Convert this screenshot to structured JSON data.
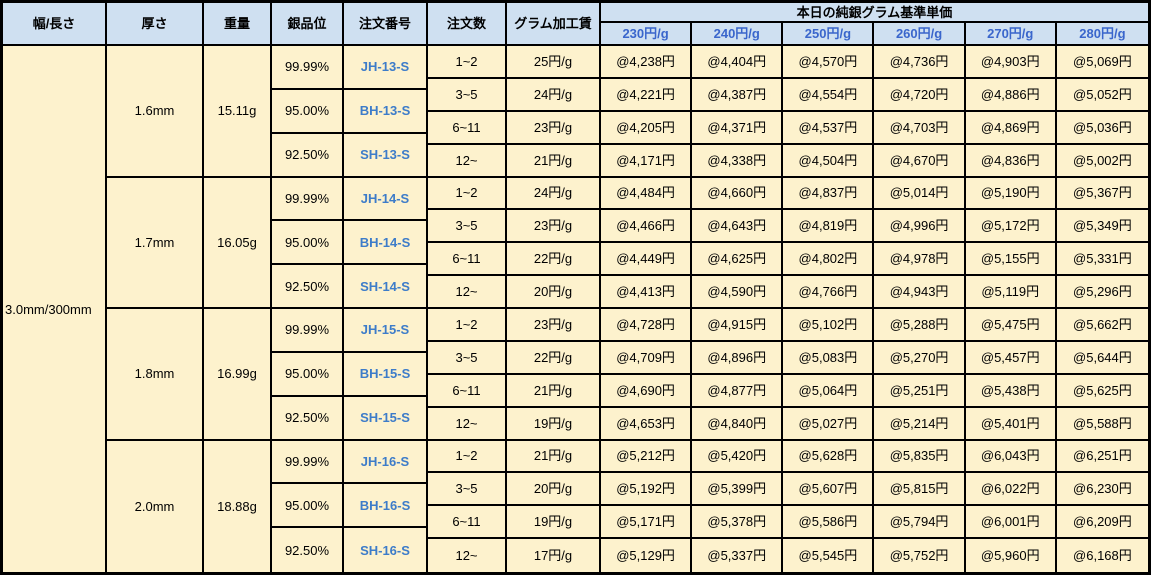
{
  "columns": {
    "width_length": "幅/長さ",
    "thickness": "厚さ",
    "weight": "重量",
    "purity": "銀品位",
    "order_number": "注文番号",
    "order_qty": "注文数",
    "gram_fee": "グラム加工賃"
  },
  "price_header": {
    "title": "本日の純銀グラム基準単価",
    "tiers": [
      "230円/g",
      "240円/g",
      "250円/g",
      "260円/g",
      "270円/g",
      "280円/g"
    ]
  },
  "size_label": "3.0mm/300mm",
  "colors": {
    "header_bg": "#cfe0f1",
    "cell_bg": "#fdf2cd",
    "tier_text": "#3a66cc",
    "order_number_text": "#3d7cc9",
    "border": "#000000"
  },
  "blocks": [
    {
      "thickness": "1.6mm",
      "weight": "15.11g",
      "purities": [
        {
          "purity": "99.99%",
          "order_no": "JH-13-S"
        },
        {
          "purity": "95.00%",
          "order_no": "BH-13-S"
        },
        {
          "purity": "92.50%",
          "order_no": "SH-13-S"
        }
      ],
      "rows": [
        {
          "qty": "1~2",
          "fee": "25円/g",
          "prices": [
            "@4,238円",
            "@4,404円",
            "@4,570円",
            "@4,736円",
            "@4,903円",
            "@5,069円"
          ]
        },
        {
          "qty": "3~5",
          "fee": "24円/g",
          "prices": [
            "@4,221円",
            "@4,387円",
            "@4,554円",
            "@4,720円",
            "@4,886円",
            "@5,052円"
          ]
        },
        {
          "qty": "6~11",
          "fee": "23円/g",
          "prices": [
            "@4,205円",
            "@4,371円",
            "@4,537円",
            "@4,703円",
            "@4,869円",
            "@5,036円"
          ]
        },
        {
          "qty": "12~",
          "fee": "21円/g",
          "prices": [
            "@4,171円",
            "@4,338円",
            "@4,504円",
            "@4,670円",
            "@4,836円",
            "@5,002円"
          ]
        }
      ]
    },
    {
      "thickness": "1.7mm",
      "weight": "16.05g",
      "purities": [
        {
          "purity": "99.99%",
          "order_no": "JH-14-S"
        },
        {
          "purity": "95.00%",
          "order_no": "BH-14-S"
        },
        {
          "purity": "92.50%",
          "order_no": "SH-14-S"
        }
      ],
      "rows": [
        {
          "qty": "1~2",
          "fee": "24円/g",
          "prices": [
            "@4,484円",
            "@4,660円",
            "@4,837円",
            "@5,014円",
            "@5,190円",
            "@5,367円"
          ]
        },
        {
          "qty": "3~5",
          "fee": "23円/g",
          "prices": [
            "@4,466円",
            "@4,643円",
            "@4,819円",
            "@4,996円",
            "@5,172円",
            "@5,349円"
          ]
        },
        {
          "qty": "6~11",
          "fee": "22円/g",
          "prices": [
            "@4,449円",
            "@4,625円",
            "@4,802円",
            "@4,978円",
            "@5,155円",
            "@5,331円"
          ]
        },
        {
          "qty": "12~",
          "fee": "20円/g",
          "prices": [
            "@4,413円",
            "@4,590円",
            "@4,766円",
            "@4,943円",
            "@5,119円",
            "@5,296円"
          ]
        }
      ]
    },
    {
      "thickness": "1.8mm",
      "weight": "16.99g",
      "purities": [
        {
          "purity": "99.99%",
          "order_no": "JH-15-S"
        },
        {
          "purity": "95.00%",
          "order_no": "BH-15-S"
        },
        {
          "purity": "92.50%",
          "order_no": "SH-15-S"
        }
      ],
      "rows": [
        {
          "qty": "1~2",
          "fee": "23円/g",
          "prices": [
            "@4,728円",
            "@4,915円",
            "@5,102円",
            "@5,288円",
            "@5,475円",
            "@5,662円"
          ]
        },
        {
          "qty": "3~5",
          "fee": "22円/g",
          "prices": [
            "@4,709円",
            "@4,896円",
            "@5,083円",
            "@5,270円",
            "@5,457円",
            "@5,644円"
          ]
        },
        {
          "qty": "6~11",
          "fee": "21円/g",
          "prices": [
            "@4,690円",
            "@4,877円",
            "@5,064円",
            "@5,251円",
            "@5,438円",
            "@5,625円"
          ]
        },
        {
          "qty": "12~",
          "fee": "19円/g",
          "prices": [
            "@4,653円",
            "@4,840円",
            "@5,027円",
            "@5,214円",
            "@5,401円",
            "@5,588円"
          ]
        }
      ]
    },
    {
      "thickness": "2.0mm",
      "weight": "18.88g",
      "purities": [
        {
          "purity": "99.99%",
          "order_no": "JH-16-S"
        },
        {
          "purity": "95.00%",
          "order_no": "BH-16-S"
        },
        {
          "purity": "92.50%",
          "order_no": "SH-16-S"
        }
      ],
      "rows": [
        {
          "qty": "1~2",
          "fee": "21円/g",
          "prices": [
            "@5,212円",
            "@5,420円",
            "@5,628円",
            "@5,835円",
            "@6,043円",
            "@6,251円"
          ]
        },
        {
          "qty": "3~5",
          "fee": "20円/g",
          "prices": [
            "@5,192円",
            "@5,399円",
            "@5,607円",
            "@5,815円",
            "@6,022円",
            "@6,230円"
          ]
        },
        {
          "qty": "6~11",
          "fee": "19円/g",
          "prices": [
            "@5,171円",
            "@5,378円",
            "@5,586円",
            "@5,794円",
            "@6,001円",
            "@6,209円"
          ]
        },
        {
          "qty": "12~",
          "fee": "17円/g",
          "prices": [
            "@5,129円",
            "@5,337円",
            "@5,545円",
            "@5,752円",
            "@5,960円",
            "@6,168円"
          ]
        }
      ]
    }
  ]
}
